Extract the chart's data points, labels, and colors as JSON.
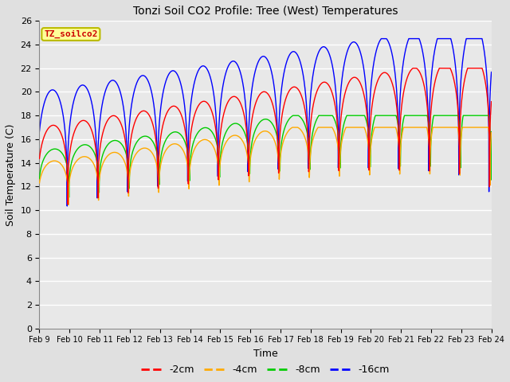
{
  "title": "Tonzi Soil CO2 Profile: Tree (West) Temperatures",
  "xlabel": "Time",
  "ylabel": "Soil Temperature (C)",
  "ylim": [
    0,
    26
  ],
  "yticks": [
    0,
    2,
    4,
    6,
    8,
    10,
    12,
    14,
    16,
    18,
    20,
    22,
    24,
    26
  ],
  "xtick_labels": [
    "Feb 9",
    "Feb 10",
    "Feb 11",
    "Feb 12",
    "Feb 13",
    "Feb 14",
    "Feb 15",
    "Feb 16",
    "Feb 17",
    "Feb 18",
    "Feb 19",
    "Feb 20",
    "Feb 21",
    "Feb 22",
    "Feb 23",
    "Feb 24"
  ],
  "colors": {
    "-2cm": "#ff0000",
    "-4cm": "#ffaa00",
    "-8cm": "#00cc00",
    "-16cm": "#0000ff"
  },
  "legend_label": "TZ_soilco2",
  "legend_box_color": "#ffff99",
  "legend_border_color": "#bbbb00",
  "legend_text_color": "#cc0000",
  "fig_bg_color": "#e0e0e0",
  "plot_bg_color": "#e8e8e8",
  "grid_color": "#ffffff"
}
